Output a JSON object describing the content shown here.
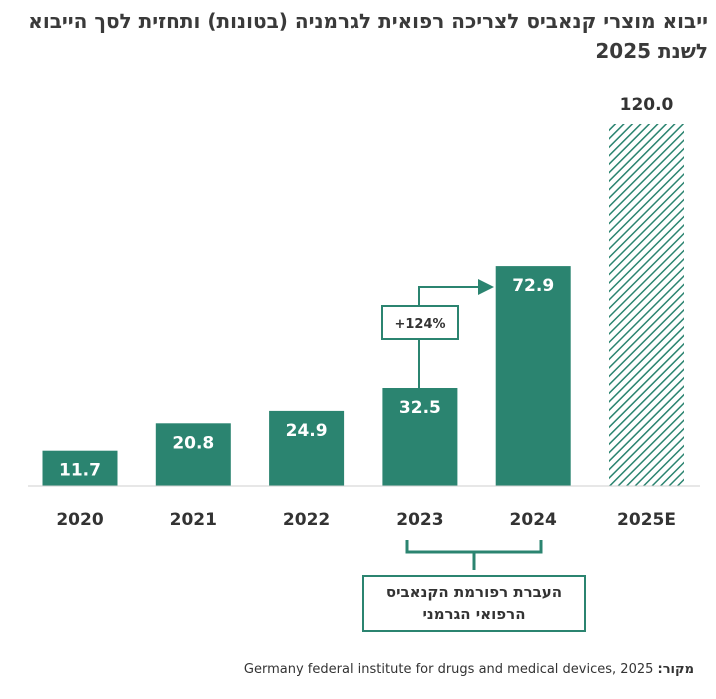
{
  "title": "ייבוא מוצרי קנאביס לצריכה רפואית לגרמניה (בטונות) ותחזית לסך הייבוא לשנת 2025",
  "source": {
    "label": "מקור:",
    "text": "Germany federal institute for drugs and medical devices, 2025"
  },
  "annotations": {
    "growth": "+124%",
    "reform_line1": "העברת רפורמת הקנאביס",
    "reform_line2": "הרפואי הגרמני"
  },
  "colors": {
    "bar": "#2b8470",
    "forecast_hatch": "#2b8470",
    "axis": "#cfcfcf"
  },
  "chart_data": {
    "type": "bar",
    "categories": [
      "2020",
      "2021",
      "2022",
      "2023",
      "2024",
      "2025E"
    ],
    "values": [
      11.7,
      20.8,
      24.9,
      32.5,
      72.9,
      120.0
    ],
    "value_labels": [
      "11.7",
      "20.8",
      "24.9",
      "32.5",
      "72.9",
      "120.0"
    ],
    "forecast": [
      false,
      false,
      false,
      false,
      false,
      true
    ],
    "ylim": [
      0,
      120
    ],
    "grid": false,
    "legend": "none"
  }
}
